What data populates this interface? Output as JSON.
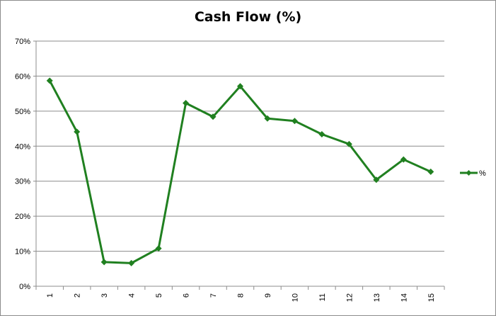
{
  "chart_data": {
    "type": "line",
    "title": "Cash Flow (%)",
    "xlabel": "",
    "ylabel": "",
    "categories": [
      "1",
      "2",
      "3",
      "4",
      "5",
      "6",
      "7",
      "8",
      "9",
      "10",
      "11",
      "12",
      "13",
      "14",
      "15"
    ],
    "series": [
      {
        "name": "%",
        "color": "#208020",
        "values": [
          58.7,
          44.1,
          6.9,
          6.6,
          10.8,
          52.3,
          48.4,
          57.1,
          47.9,
          47.2,
          43.4,
          40.6,
          30.4,
          36.2,
          32.7
        ]
      }
    ],
    "ylim": [
      0,
      70
    ],
    "y_ticks": [
      "0%",
      "10%",
      "20%",
      "30%",
      "40%",
      "50%",
      "60%",
      "70%"
    ],
    "grid": true,
    "legend_position": "right"
  }
}
